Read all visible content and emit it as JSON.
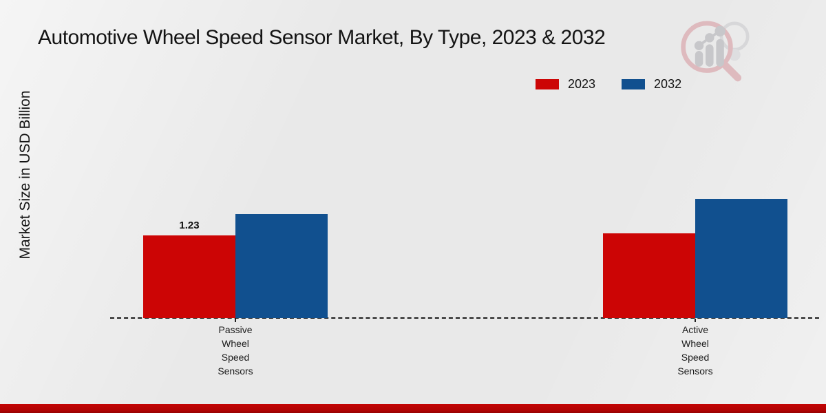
{
  "title": "Automotive Wheel Speed Sensor Market, By Type, 2023 & 2032",
  "ylabel": "Market Size in USD Billion",
  "icons": {
    "logo": "bar-chart-magnifier-icon"
  },
  "colors": {
    "background": "#e9e9e9",
    "series_2023": "#cc0505",
    "series_2032": "#11508f",
    "baseline": "#1b1b1b",
    "bottom_band": "#b10303"
  },
  "legend": {
    "items": [
      {
        "label": "2023",
        "color": "#cc0505"
      },
      {
        "label": "2032",
        "color": "#11508f"
      }
    ]
  },
  "chart_data": {
    "type": "bar",
    "categories": [
      "Passive Wheel Speed Sensors",
      "Active Wheel Speed Sensors"
    ],
    "series": [
      {
        "name": "2023",
        "color": "#cc0505",
        "values": [
          1.23,
          1.26
        ],
        "labels": [
          "1.23",
          null
        ]
      },
      {
        "name": "2032",
        "color": "#11508f",
        "values": [
          1.55,
          1.77
        ],
        "labels": [
          null,
          null
        ]
      }
    ],
    "title": "Automotive Wheel Speed Sensor Market, By Type, 2023 & 2032",
    "xlabel": "",
    "ylabel": "Market Size in USD Billion",
    "ylim": [
      0,
      2.0
    ],
    "grid": false,
    "legend_position": "top-right",
    "x_axis_style": "dashed-baseline-no-y-ticks"
  }
}
